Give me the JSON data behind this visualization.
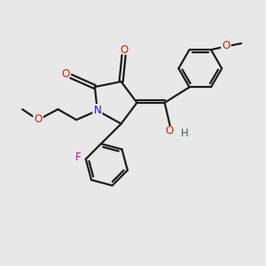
{
  "background_color": "#e8e8e8",
  "bond_color": "#1a1a1a",
  "bond_width": 1.6,
  "atom_colors": {
    "O": "#dd2200",
    "N": "#1111ee",
    "F": "#cc00bb",
    "OH": "#336666",
    "C": "#1a1a1a"
  },
  "font_size_atom": 8.5,
  "font_size_small": 7.0
}
